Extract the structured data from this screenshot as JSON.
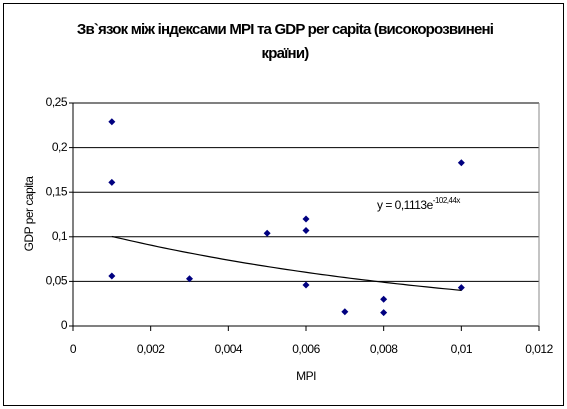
{
  "chart_data": {
    "type": "scatter",
    "title": "Зв`язок між індексами MPI та GDP per capita (високорозвинені країни)",
    "x_label": "MPI",
    "y_label": "GDP per capita",
    "x": [
      0.001,
      0.001,
      0.001,
      0.003,
      0.005,
      0.006,
      0.006,
      0.006,
      0.007,
      0.008,
      0.008,
      0.01,
      0.01
    ],
    "values": [
      0.229,
      0.161,
      0.056,
      0.053,
      0.104,
      0.12,
      0.107,
      0.046,
      0.016,
      0.03,
      0.015,
      0.183,
      0.043
    ],
    "color": "#000080",
    "xlim": [
      0,
      0.012
    ],
    "xticks": [
      0,
      {
        "value": 0.002,
        "label": "0,002"
      },
      {
        "value": 0.004,
        "label": "0,004"
      },
      {
        "value": 0.006,
        "label": "0,006"
      },
      {
        "value": 0.008,
        "label": "0,008"
      },
      {
        "value": 0.01,
        "label": "0,01"
      },
      {
        "value": 0.012,
        "label": "0,012"
      }
    ],
    "ylim": [
      0,
      0.25
    ],
    "yticks": [
      0,
      {
        "value": 0.05,
        "label": "0,05"
      },
      {
        "value": 0.1,
        "label": "0,1"
      },
      {
        "value": 0.15,
        "label": "0,15"
      },
      {
        "value": 0.2,
        "label": "0,2"
      },
      {
        "value": 0.25,
        "label": "0,25"
      }
    ],
    "grid": true,
    "trendline": {
      "a": 0.1113,
      "b": -102.44,
      "label": "y = 0,1113e",
      "exponent_label": "-102,44x"
    }
  }
}
